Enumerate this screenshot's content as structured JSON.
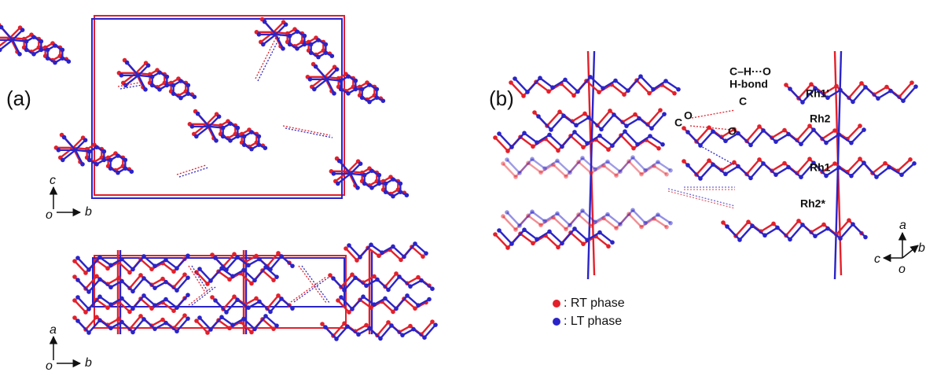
{
  "panel_a": {
    "label": "(a)",
    "top_axes": {
      "vertical": "c",
      "origin": "o",
      "horizontal": "b"
    },
    "bottom_axes": {
      "vertical": "a",
      "origin": "o",
      "horizontal": "b"
    }
  },
  "panel_b": {
    "label": "(b)",
    "annotation": [
      "C–H···O",
      "H-bond"
    ],
    "atom_labels": [
      "O",
      "C",
      "C",
      "O",
      "Rh1'",
      "Rh2",
      "Rh1",
      "Rh2*"
    ],
    "axes": {
      "vertical": "a",
      "horizontal": "c",
      "diagonal": "b",
      "origin": "o"
    }
  },
  "legend": [
    {
      "label": ": RT phase",
      "color": "#e3202a"
    },
    {
      "label": ": LT phase",
      "color": "#2a24c8"
    }
  ]
}
